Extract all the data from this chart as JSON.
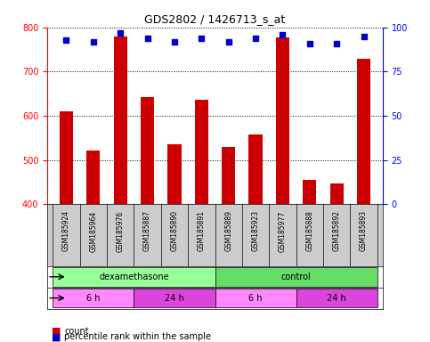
{
  "title": "GDS2802 / 1426713_s_at",
  "samples": [
    "GSM185924",
    "GSM185964",
    "GSM185976",
    "GSM185887",
    "GSM185890",
    "GSM185891",
    "GSM185889",
    "GSM185923",
    "GSM185977",
    "GSM185888",
    "GSM185892",
    "GSM185893"
  ],
  "counts": [
    610,
    522,
    780,
    643,
    535,
    637,
    530,
    558,
    778,
    456,
    448,
    728
  ],
  "percentiles": [
    93,
    92,
    97,
    94,
    92,
    94,
    92,
    94,
    96,
    91,
    91,
    95
  ],
  "bar_color": "#cc0000",
  "dot_color": "#0000cc",
  "ylim_left": [
    400,
    800
  ],
  "ylim_right": [
    0,
    100
  ],
  "yticks_left": [
    400,
    500,
    600,
    700,
    800
  ],
  "yticks_right": [
    0,
    25,
    50,
    75,
    100
  ],
  "agent_labels": [
    {
      "label": "dexamethasone",
      "start": 0,
      "end": 6,
      "color": "#99ff99"
    },
    {
      "label": "control",
      "start": 6,
      "end": 12,
      "color": "#66dd66"
    }
  ],
  "time_labels": [
    {
      "label": "6 h",
      "start": 0,
      "end": 3,
      "color": "#ff88ff"
    },
    {
      "label": "24 h",
      "start": 3,
      "end": 6,
      "color": "#dd44dd"
    },
    {
      "label": "6 h",
      "start": 6,
      "end": 9,
      "color": "#ff88ff"
    },
    {
      "label": "24 h",
      "start": 9,
      "end": 12,
      "color": "#dd44dd"
    }
  ],
  "bg_color": "#ffffff",
  "grid_color": "#000000",
  "label_row_color": "#cccccc"
}
